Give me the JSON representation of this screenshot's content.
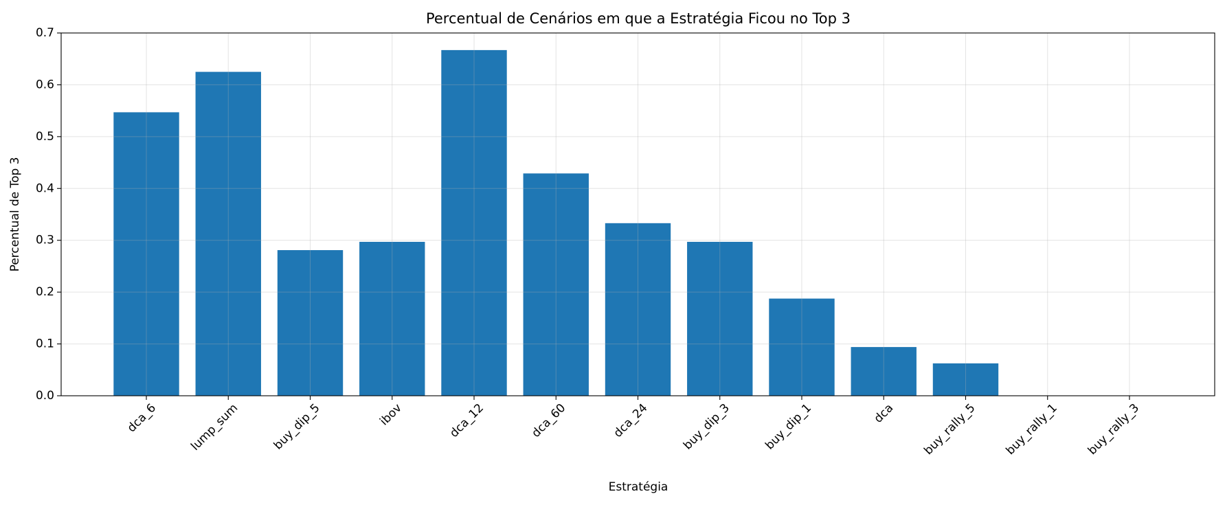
{
  "chart_data": {
    "type": "bar",
    "title": "Percentual de Cenários em que a Estratégia Ficou no Top 3",
    "x_label": "Estratégia",
    "y_label": "Percentual de Top 3",
    "categories": [
      "dca_6",
      "lump_sum",
      "buy_dip_5",
      "ibov",
      "dca_12",
      "dca_60",
      "dca_24",
      "buy_dip_3",
      "buy_dip_1",
      "dca",
      "buy_rally_5",
      "buy_rally_1",
      "buy_rally_3"
    ],
    "values": [
      0.547,
      0.625,
      0.281,
      0.297,
      0.667,
      0.429,
      0.333,
      0.297,
      0.1875,
      0.094,
      0.0625,
      0,
      0
    ],
    "color": "#1f77b4",
    "ylim": [
      0,
      0.7
    ],
    "yticks": [
      {
        "value": 0,
        "label": "0.0"
      },
      0.1,
      0.2,
      0.3,
      0.4,
      0.5,
      0.6,
      0.7
    ],
    "grid": true
  }
}
